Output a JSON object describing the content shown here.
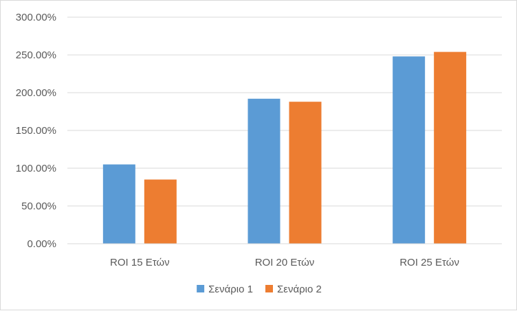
{
  "chart_data": {
    "type": "bar",
    "categories": [
      "ROI 15 Ετών",
      "ROI 20 Ετών",
      "ROI 25 Ετών"
    ],
    "series": [
      {
        "name": "Σενάριο 1",
        "values": [
          105,
          192,
          248
        ],
        "color": "#5b9bd5"
      },
      {
        "name": "Σενάριο 2",
        "values": [
          85,
          188,
          254
        ],
        "color": "#ed7d31"
      }
    ],
    "title": "",
    "xlabel": "",
    "ylabel": "",
    "ylim": [
      0,
      300
    ],
    "yticks": [
      0,
      50,
      100,
      150,
      200,
      250,
      300
    ],
    "ytick_labels": [
      "0.00%",
      "50.00%",
      "100.00%",
      "150.00%",
      "200.00%",
      "250.00%",
      "300.00%"
    ],
    "grid": true,
    "legend": "bottom"
  }
}
